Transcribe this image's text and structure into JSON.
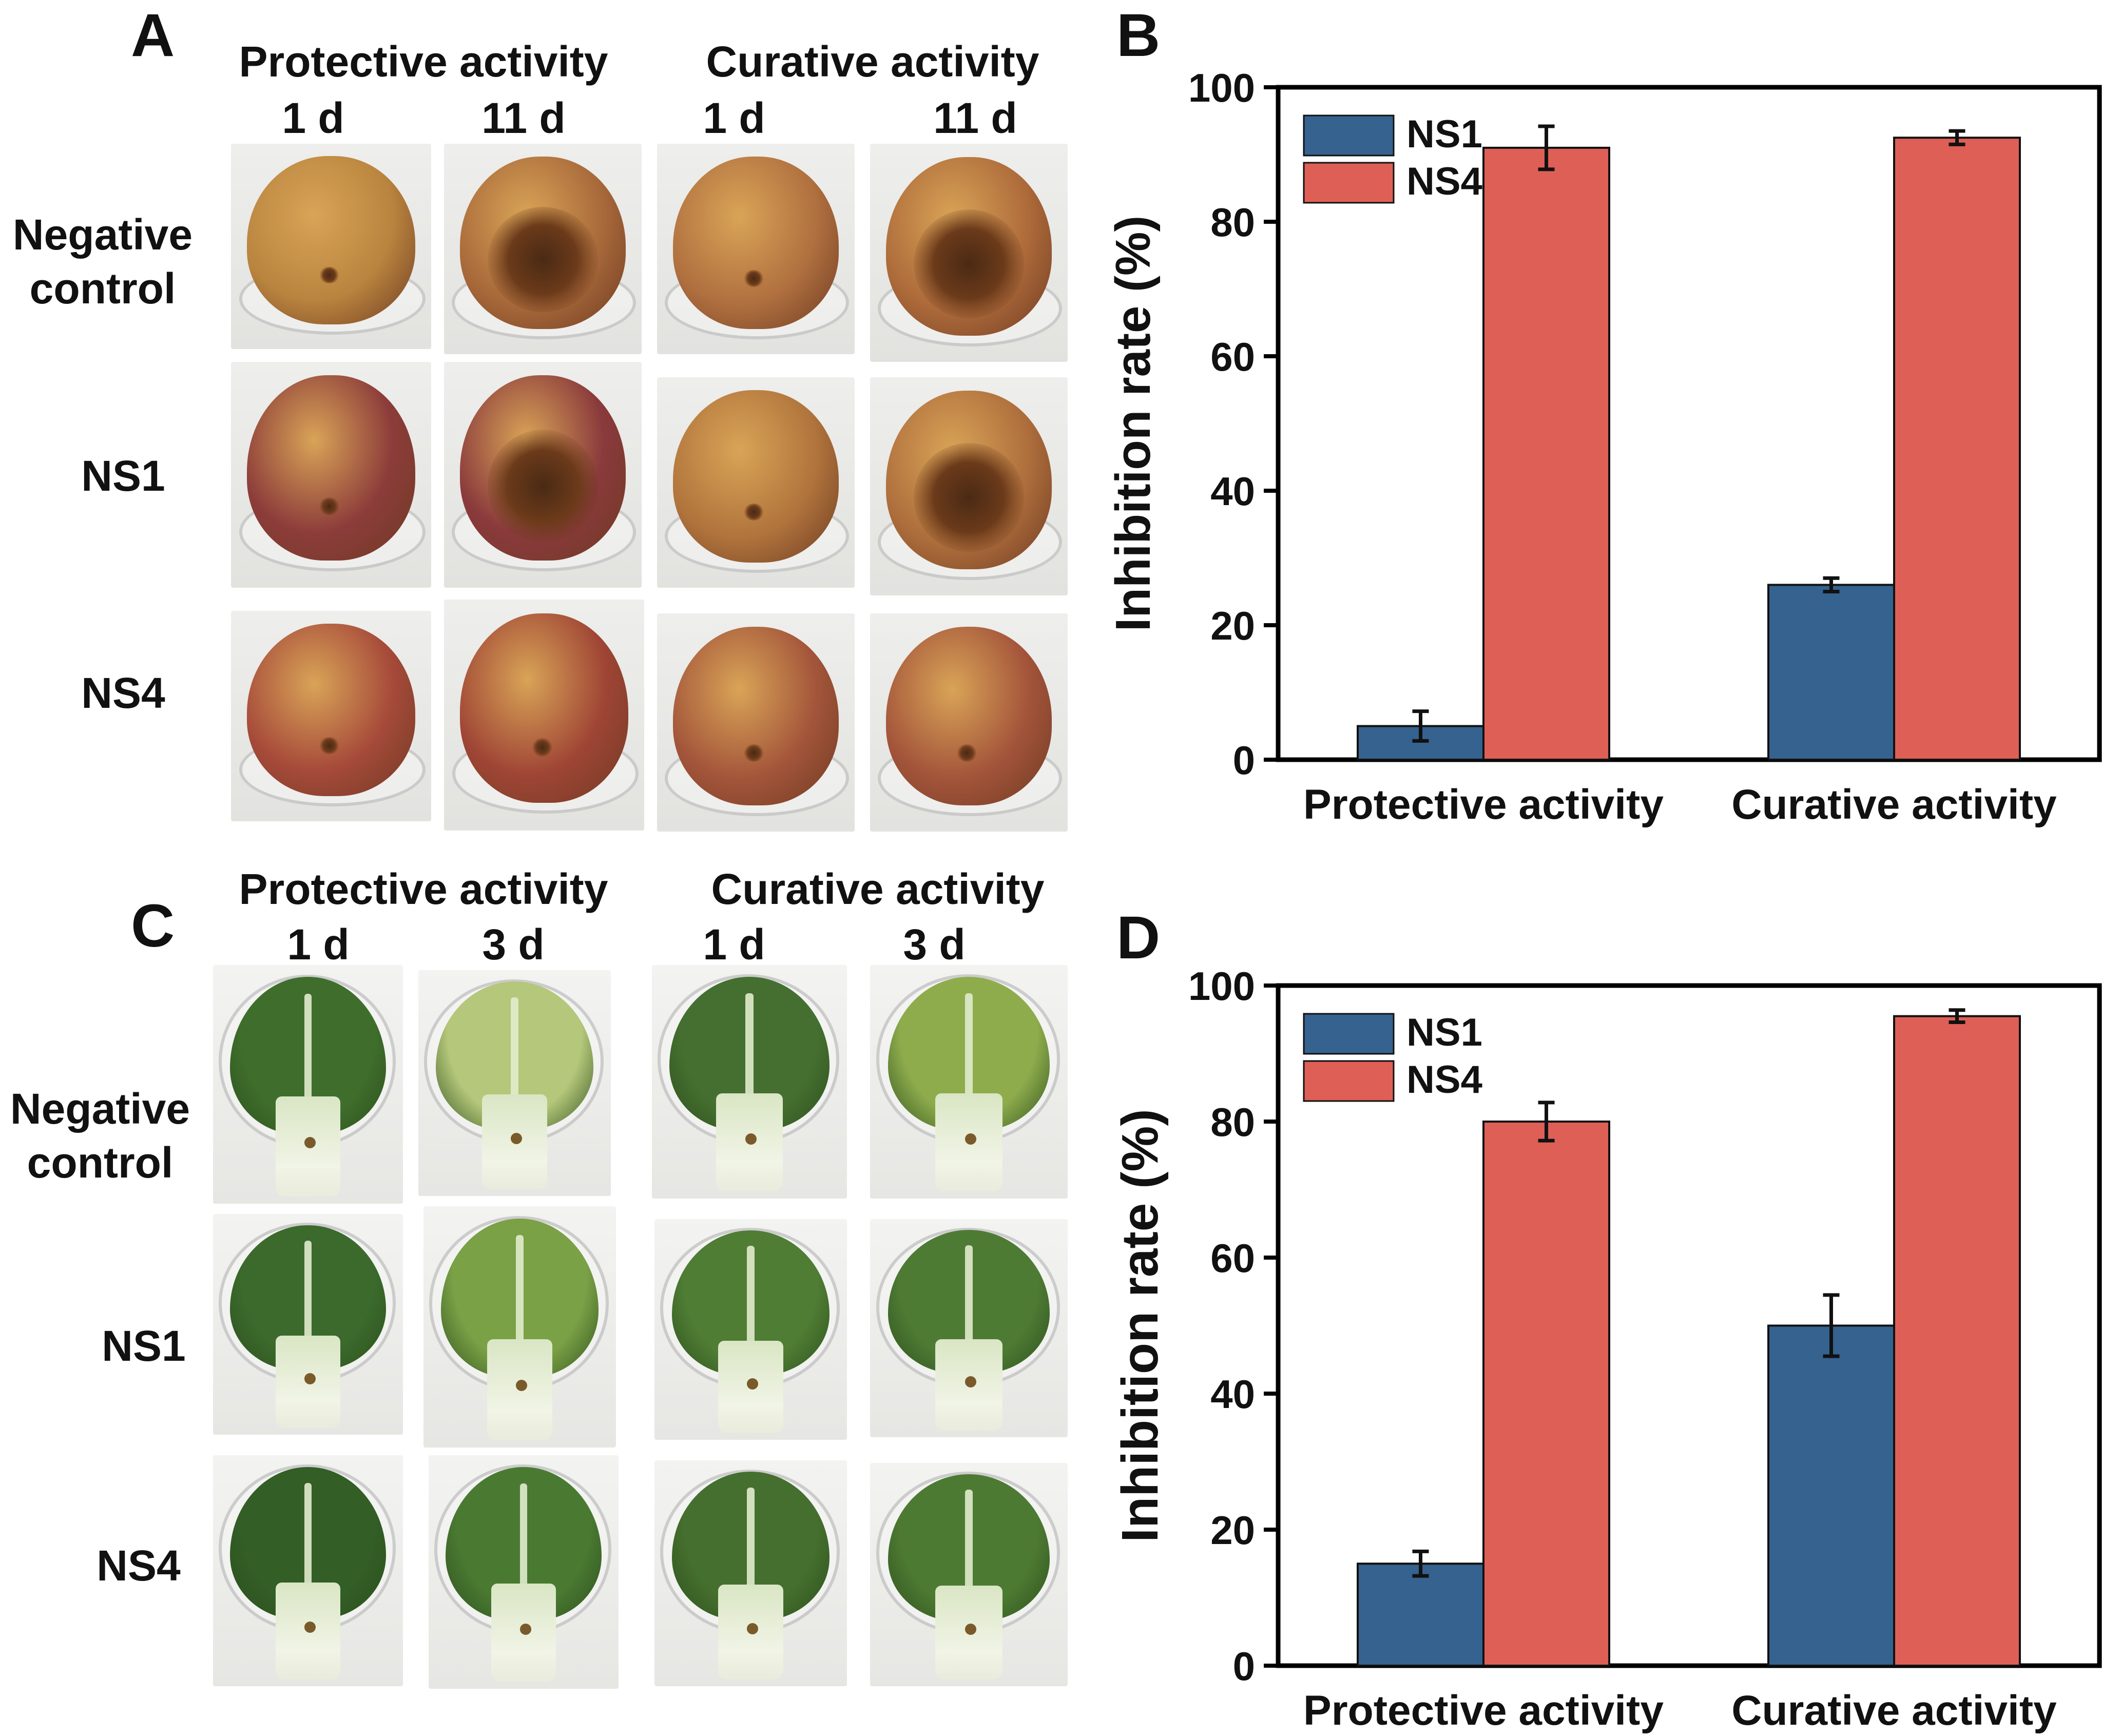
{
  "panels": {
    "a": {
      "letter": "A",
      "col_group_1": "Protective activity",
      "col_group_2": "Curative activity",
      "day_labels": [
        "1 d",
        "11 d",
        "1 d",
        "11 d"
      ],
      "row_labels": [
        "Negative\ncontrol",
        "NS1",
        "NS4"
      ]
    },
    "c": {
      "letter": "C",
      "col_group_1": "Protective activity",
      "col_group_2": "Curative activity",
      "day_labels": [
        "1 d",
        "3 d",
        "1 d",
        "3 d"
      ],
      "row_labels": [
        "Negative\ncontrol",
        "NS1",
        "NS4"
      ]
    },
    "b": {
      "letter": "B"
    },
    "d": {
      "letter": "D"
    }
  },
  "chart_data": [
    {
      "id": "b",
      "type": "bar",
      "title": "",
      "categories": [
        "Protective activity",
        "Curative activity"
      ],
      "series": [
        {
          "name": "NS1",
          "color": "#35628f",
          "values": [
            5,
            26
          ],
          "errors": [
            2.2,
            1.0
          ]
        },
        {
          "name": "NS4",
          "color": "#de5f56",
          "values": [
            91,
            92.5
          ],
          "errors": [
            3.2,
            1.0
          ]
        }
      ],
      "xlabel": "",
      "ylabel": "Inhibition rate (%)",
      "ylim": [
        0,
        100
      ],
      "yticks": [
        0,
        20,
        40,
        60,
        80,
        100
      ],
      "legend": "top-left"
    },
    {
      "id": "d",
      "type": "bar",
      "title": "",
      "categories": [
        "Protective activity",
        "Curative activity"
      ],
      "series": [
        {
          "name": "NS1",
          "color": "#35628f",
          "values": [
            15,
            50
          ],
          "errors": [
            1.8,
            4.5
          ]
        },
        {
          "name": "NS4",
          "color": "#de5f56",
          "values": [
            80,
            95.5
          ],
          "errors": [
            2.8,
            0.9
          ]
        }
      ],
      "xlabel": "",
      "ylabel": "Inhibition rate (%)",
      "ylim": [
        0,
        100
      ],
      "yticks": [
        0,
        20,
        40,
        60,
        80,
        100
      ],
      "legend": "top-left"
    }
  ]
}
